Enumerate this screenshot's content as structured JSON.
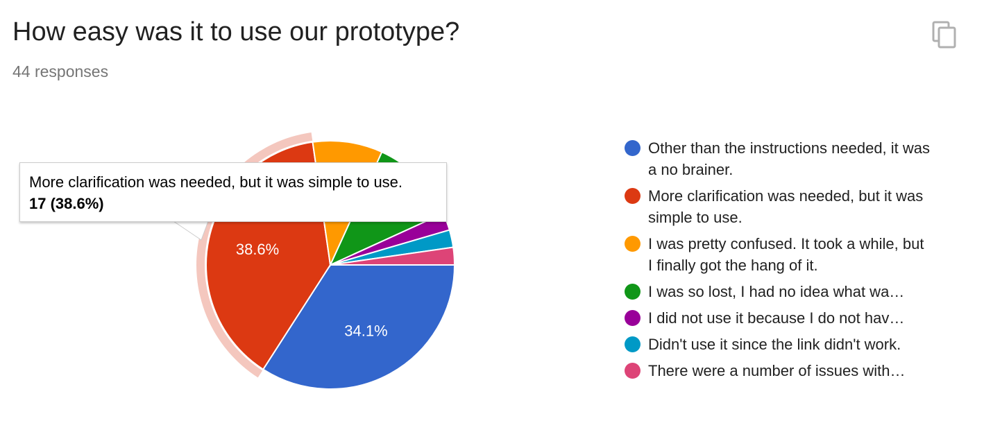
{
  "header": {
    "title": "How easy was it to use our prototype?",
    "responses": "44 responses"
  },
  "toolbar": {
    "copy_icon": "copy-icon"
  },
  "chart_data": {
    "type": "pie",
    "title": "How easy was it to use our prototype?",
    "total_responses": 44,
    "legend_position": "right",
    "slices": [
      {
        "label": "Other than the instructions needed, it was a no brainer.",
        "value": 15,
        "percent_label": "34.1%",
        "color": "#3366cc"
      },
      {
        "label": "More clarification was needed, but it was simple to use.",
        "value": 17,
        "percent_label": "38.6%",
        "color": "#dc3912"
      },
      {
        "label": "I was pretty confused. It took a while, but I finally got the hang of it.",
        "value": 4,
        "percent_label": "",
        "color": "#ff9900"
      },
      {
        "label": "I was so lost, I had no idea what wa…",
        "value": 5,
        "percent_label": "",
        "color": "#109618"
      },
      {
        "label": "I did not use it because I do not hav…",
        "value": 1,
        "percent_label": "",
        "color": "#990099"
      },
      {
        "label": "Didn't use it since the link didn't work.",
        "value": 1,
        "percent_label": "",
        "color": "#0099c6"
      },
      {
        "label": "There were a number of issues with…",
        "value": 1,
        "percent_label": "",
        "color": "#dd4477"
      }
    ],
    "highlighted_index": 1
  },
  "tooltip": {
    "label": "More clarification was needed, but it was simple to use.",
    "value": "17 (38.6%)"
  }
}
